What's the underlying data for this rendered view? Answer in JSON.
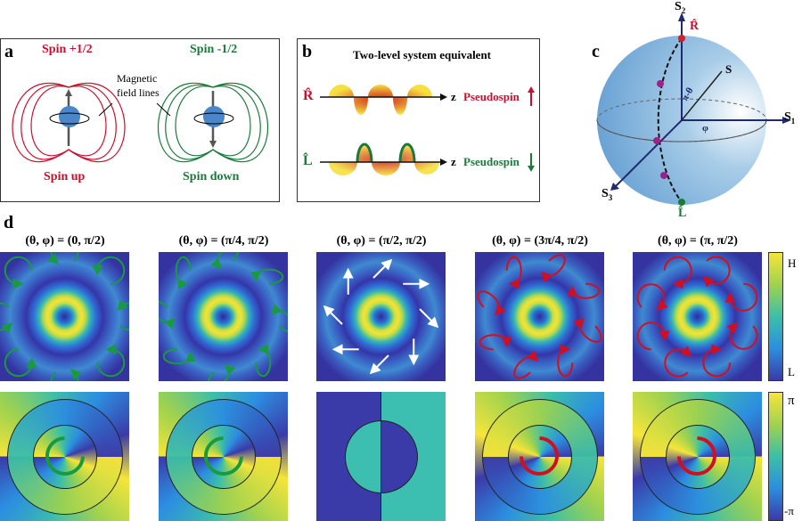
{
  "panel_a": {
    "label": "a",
    "spin_plus": "Spin +1/2",
    "spin_minus": "Spin -1/2",
    "annotation": "Magnetic field lines",
    "spin_up": "Spin up",
    "spin_down": "Spin down",
    "colors": {
      "up": "#c8102e",
      "down": "#1a7a3a",
      "particle": "#4a86c8"
    }
  },
  "panel_b": {
    "label": "b",
    "title": "Two-level system equivalent",
    "rows": [
      {
        "state": "R̂",
        "axis": "z",
        "label": "Pseudospin",
        "arrow": "up-arrow"
      },
      {
        "state": "L̂",
        "axis": "z",
        "label": "Pseudospin",
        "arrow": "down-arrow"
      }
    ]
  },
  "panel_c": {
    "label": "c",
    "axes": {
      "s1": "S",
      "s1_sub": "1",
      "s2": "S",
      "s2_sub": "2",
      "s3": "S",
      "s3_sub": "3"
    },
    "vector": "S",
    "angle_polar": "π-θ",
    "angle_azimuth": "φ",
    "north": "R̂",
    "south": "L̂"
  },
  "panel_d": {
    "label": "d",
    "columns": [
      {
        "title": "(θ, φ) = (0, π/2)",
        "arrow_color": "#1a9a40",
        "arrow_type": "circular-ccw",
        "phase_offset": 0
      },
      {
        "title": "(θ, φ) = (π/4, π/2)",
        "arrow_color": "#1a9a40",
        "arrow_type": "elliptical",
        "phase_offset": 0
      },
      {
        "title": "(θ, φ) = (π/2, π/2)",
        "arrow_color": "#ffffff",
        "arrow_type": "linear",
        "phase_offset": 0
      },
      {
        "title": "(θ, φ) = (3π/4, π/2)",
        "arrow_color": "#d01020",
        "arrow_type": "elliptical",
        "phase_offset": 0
      },
      {
        "title": "(θ, φ) = (π, π/2)",
        "arrow_color": "#d01020",
        "arrow_type": "circular-cw",
        "phase_offset": 0
      }
    ],
    "intensity_colorbar": {
      "max": "H",
      "min": "L"
    },
    "phase_colorbar": {
      "max": "π",
      "min": "-π"
    }
  }
}
